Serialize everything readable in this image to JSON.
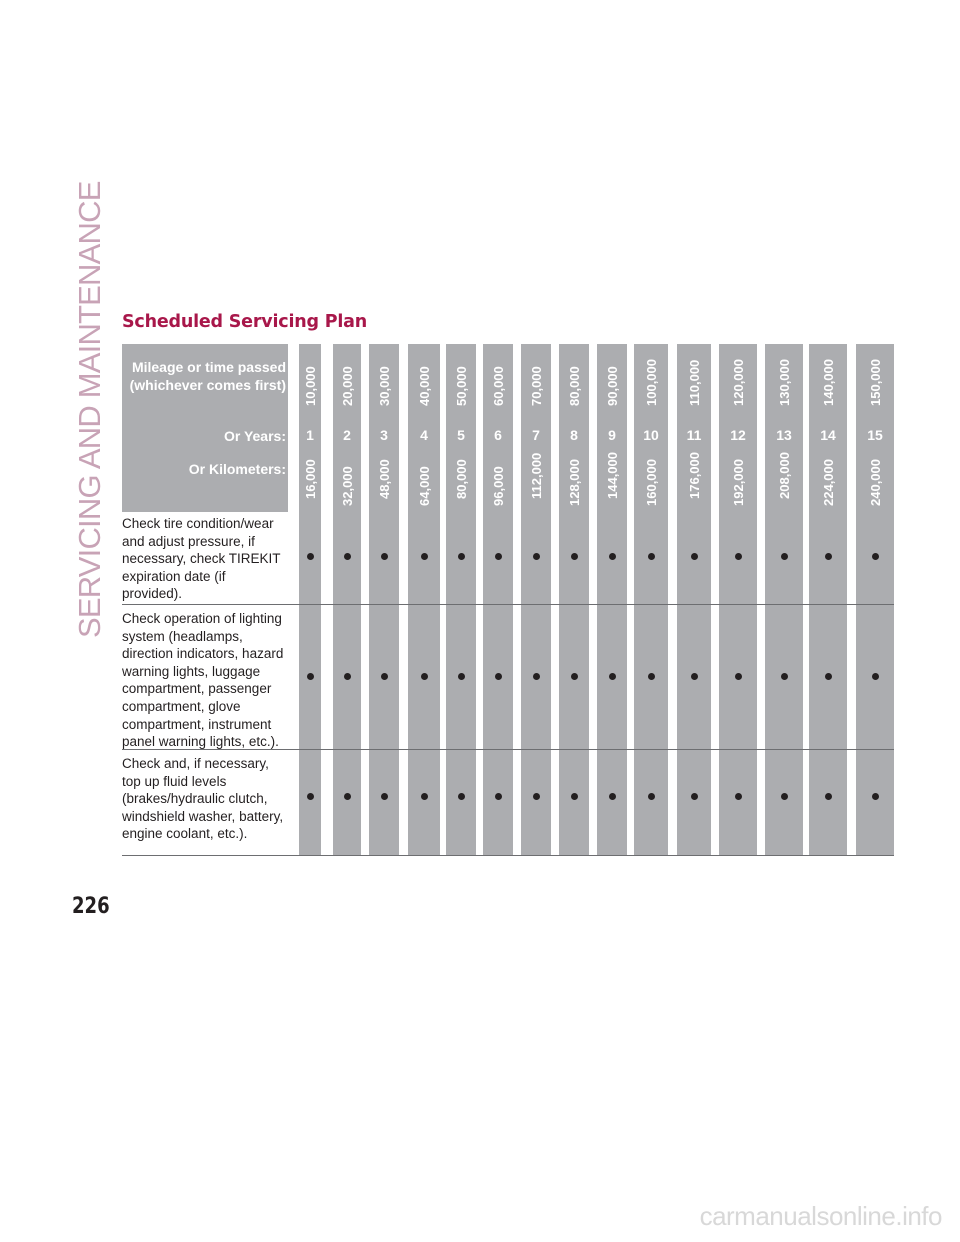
{
  "side_title": "SERVICING AND MAINTENANCE",
  "section_title": "Scheduled Servicing Plan",
  "page_number": "226",
  "table": {
    "header_mileage_label_line1": "Mileage or time passed",
    "header_mileage_label_line2": "(whichever comes first)",
    "header_years_label": "Or Years:",
    "header_km_label": "Or Kilometers:",
    "mileage": [
      "10,000",
      "20,000",
      "30,000",
      "40,000",
      "50,000",
      "60,000",
      "70,000",
      "80,000",
      "90,000",
      "100,000",
      "110,000",
      "120,000",
      "130,000",
      "140,000",
      "150,000"
    ],
    "years": [
      "1",
      "2",
      "3",
      "4",
      "5",
      "6",
      "7",
      "8",
      "9",
      "10",
      "11",
      "12",
      "13",
      "14",
      "15"
    ],
    "kilometers": [
      "16,000",
      "32,000",
      "48,000",
      "64,000",
      "80,000",
      "96,000",
      "112,000",
      "128,000",
      "144,000",
      "160,000",
      "176,000",
      "192,000",
      "208,000",
      "224,000",
      "240,000"
    ],
    "rows": [
      {
        "lines": [
          "Check tire condition/wear",
          "and adjust pressure, if",
          "necessary, check TIREKIT",
          "expiration date (if",
          "provided)."
        ],
        "marks": [
          true,
          true,
          true,
          true,
          true,
          true,
          true,
          true,
          true,
          true,
          true,
          true,
          true,
          true,
          true
        ]
      },
      {
        "lines": [
          "Check operation of lighting",
          "system (headlamps,",
          "direction indicators, hazard",
          "warning lights, luggage",
          "compartment, passenger",
          "compartment, glove",
          "compartment, instrument",
          "panel warning lights, etc.)."
        ],
        "marks": [
          true,
          true,
          true,
          true,
          true,
          true,
          true,
          true,
          true,
          true,
          true,
          true,
          true,
          true,
          true
        ]
      },
      {
        "lines": [
          "Check and, if necessary,",
          "top up fluid levels",
          "(brakes/hydraulic clutch,",
          "windshield washer, battery,",
          "engine coolant, etc.)."
        ],
        "marks": [
          true,
          true,
          true,
          true,
          true,
          true,
          true,
          true,
          true,
          true,
          true,
          true,
          true,
          true,
          true
        ]
      }
    ]
  },
  "watermark": "carmanualsonline.info",
  "colors": {
    "accent": "#a8174a",
    "side_title": "#c8a3b6",
    "band": "#acadb0",
    "text": "#231f20"
  }
}
